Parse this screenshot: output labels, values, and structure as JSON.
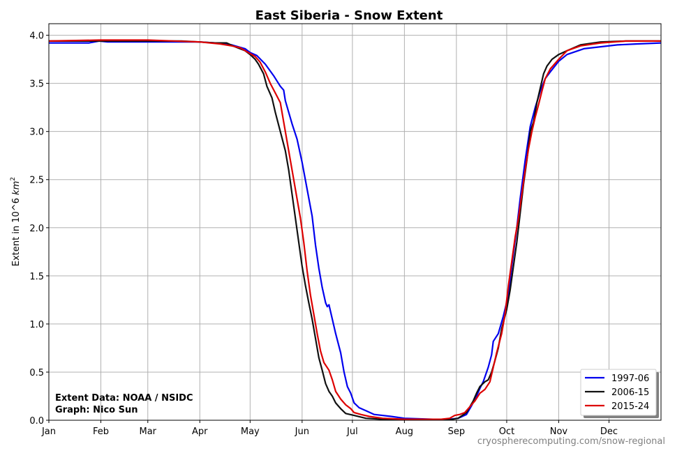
{
  "chart_data": {
    "type": "line",
    "title": "East Siberia - Snow Extent",
    "ylabel_prefix": "Extent in 10^6 ",
    "ylabel_unit": "km",
    "ylabel_exp": "2",
    "xlim": [
      1,
      366
    ],
    "ylim": [
      0,
      4.12
    ],
    "grid": true,
    "legend_position": "lower-right",
    "x_ticks": [
      {
        "label": "Jan",
        "day": 1
      },
      {
        "label": "Feb",
        "day": 32
      },
      {
        "label": "Mar",
        "day": 60
      },
      {
        "label": "Apr",
        "day": 91
      },
      {
        "label": "May",
        "day": 121
      },
      {
        "label": "Jun",
        "day": 152
      },
      {
        "label": "Jul",
        "day": 182
      },
      {
        "label": "Aug",
        "day": 213
      },
      {
        "label": "Sep",
        "day": 244
      },
      {
        "label": "Oct",
        "day": 274
      },
      {
        "label": "Nov",
        "day": 305
      },
      {
        "label": "Dec",
        "day": 335
      }
    ],
    "y_ticks": [
      {
        "label": "0.0",
        "value": 0.0
      },
      {
        "label": "0.5",
        "value": 0.5
      },
      {
        "label": "1.0",
        "value": 1.0
      },
      {
        "label": "1.5",
        "value": 1.5
      },
      {
        "label": "2.0",
        "value": 2.0
      },
      {
        "label": "2.5",
        "value": 2.5
      },
      {
        "label": "3.0",
        "value": 3.0
      },
      {
        "label": "3.5",
        "value": 3.5
      },
      {
        "label": "4.0",
        "value": 4.0
      }
    ],
    "series": [
      {
        "name": "1997-06",
        "color": "#0000ee",
        "points": [
          [
            1,
            3.92
          ],
          [
            25,
            3.92
          ],
          [
            31,
            3.94
          ],
          [
            36,
            3.93
          ],
          [
            60,
            3.93
          ],
          [
            91,
            3.93
          ],
          [
            100,
            3.92
          ],
          [
            110,
            3.9
          ],
          [
            118,
            3.86
          ],
          [
            121,
            3.82
          ],
          [
            125,
            3.79
          ],
          [
            130,
            3.7
          ],
          [
            135,
            3.58
          ],
          [
            139,
            3.47
          ],
          [
            141,
            3.43
          ],
          [
            142,
            3.32
          ],
          [
            144,
            3.2
          ],
          [
            146,
            3.08
          ],
          [
            149,
            2.92
          ],
          [
            152,
            2.68
          ],
          [
            155,
            2.4
          ],
          [
            158,
            2.12
          ],
          [
            160,
            1.82
          ],
          [
            162,
            1.58
          ],
          [
            164,
            1.38
          ],
          [
            166,
            1.22
          ],
          [
            167,
            1.18
          ],
          [
            168,
            1.2
          ],
          [
            170,
            1.05
          ],
          [
            172,
            0.9
          ],
          [
            175,
            0.7
          ],
          [
            177,
            0.5
          ],
          [
            179,
            0.35
          ],
          [
            181,
            0.28
          ],
          [
            183,
            0.18
          ],
          [
            186,
            0.13
          ],
          [
            190,
            0.1
          ],
          [
            195,
            0.06
          ],
          [
            205,
            0.04
          ],
          [
            213,
            0.02
          ],
          [
            230,
            0.01
          ],
          [
            240,
            0.01
          ],
          [
            245,
            0.02
          ],
          [
            250,
            0.06
          ],
          [
            253,
            0.15
          ],
          [
            256,
            0.25
          ],
          [
            258,
            0.33
          ],
          [
            260,
            0.4
          ],
          [
            263,
            0.55
          ],
          [
            265,
            0.68
          ],
          [
            266,
            0.82
          ],
          [
            269,
            0.9
          ],
          [
            272,
            1.08
          ],
          [
            275,
            1.3
          ],
          [
            277,
            1.6
          ],
          [
            280,
            2.0
          ],
          [
            282,
            2.3
          ],
          [
            285,
            2.7
          ],
          [
            288,
            3.05
          ],
          [
            291,
            3.25
          ],
          [
            294,
            3.42
          ],
          [
            297,
            3.55
          ],
          [
            300,
            3.62
          ],
          [
            305,
            3.73
          ],
          [
            310,
            3.8
          ],
          [
            320,
            3.86
          ],
          [
            330,
            3.88
          ],
          [
            340,
            3.9
          ],
          [
            352,
            3.91
          ],
          [
            366,
            3.92
          ]
        ]
      },
      {
        "name": "2006-15",
        "color": "#111111",
        "points": [
          [
            1,
            3.94
          ],
          [
            20,
            3.94
          ],
          [
            31,
            3.94
          ],
          [
            60,
            3.94
          ],
          [
            80,
            3.94
          ],
          [
            91,
            3.93
          ],
          [
            100,
            3.92
          ],
          [
            107,
            3.92
          ],
          [
            112,
            3.88
          ],
          [
            118,
            3.84
          ],
          [
            121,
            3.8
          ],
          [
            124,
            3.75
          ],
          [
            126,
            3.7
          ],
          [
            129,
            3.6
          ],
          [
            131,
            3.47
          ],
          [
            134,
            3.35
          ],
          [
            136,
            3.2
          ],
          [
            139,
            3.0
          ],
          [
            142,
            2.8
          ],
          [
            144,
            2.6
          ],
          [
            146,
            2.35
          ],
          [
            148,
            2.1
          ],
          [
            150,
            1.85
          ],
          [
            152,
            1.6
          ],
          [
            154,
            1.4
          ],
          [
            156,
            1.22
          ],
          [
            158,
            1.05
          ],
          [
            160,
            0.85
          ],
          [
            162,
            0.65
          ],
          [
            164,
            0.52
          ],
          [
            166,
            0.38
          ],
          [
            168,
            0.3
          ],
          [
            170,
            0.25
          ],
          [
            172,
            0.18
          ],
          [
            175,
            0.12
          ],
          [
            178,
            0.07
          ],
          [
            183,
            0.05
          ],
          [
            190,
            0.02
          ],
          [
            200,
            0.01
          ],
          [
            213,
            0.005
          ],
          [
            240,
            0.005
          ],
          [
            245,
            0.02
          ],
          [
            250,
            0.08
          ],
          [
            254,
            0.2
          ],
          [
            256,
            0.28
          ],
          [
            258,
            0.35
          ],
          [
            261,
            0.4
          ],
          [
            263,
            0.42
          ],
          [
            265,
            0.5
          ],
          [
            267,
            0.62
          ],
          [
            269,
            0.75
          ],
          [
            271,
            0.95
          ],
          [
            274,
            1.15
          ],
          [
            276,
            1.35
          ],
          [
            278,
            1.6
          ],
          [
            280,
            1.85
          ],
          [
            282,
            2.15
          ],
          [
            284,
            2.45
          ],
          [
            286,
            2.7
          ],
          [
            288,
            3.0
          ],
          [
            290,
            3.1
          ],
          [
            292,
            3.3
          ],
          [
            294,
            3.45
          ],
          [
            296,
            3.6
          ],
          [
            298,
            3.68
          ],
          [
            301,
            3.75
          ],
          [
            305,
            3.8
          ],
          [
            310,
            3.84
          ],
          [
            318,
            3.9
          ],
          [
            330,
            3.93
          ],
          [
            345,
            3.94
          ],
          [
            366,
            3.94
          ]
        ]
      },
      {
        "name": "2015-24",
        "color": "#dd0000",
        "points": [
          [
            1,
            3.94
          ],
          [
            31,
            3.95
          ],
          [
            60,
            3.95
          ],
          [
            91,
            3.93
          ],
          [
            103,
            3.91
          ],
          [
            110,
            3.89
          ],
          [
            115,
            3.87
          ],
          [
            120,
            3.82
          ],
          [
            124,
            3.78
          ],
          [
            127,
            3.72
          ],
          [
            130,
            3.62
          ],
          [
            133,
            3.5
          ],
          [
            136,
            3.4
          ],
          [
            139,
            3.3
          ],
          [
            141,
            3.1
          ],
          [
            143,
            2.9
          ],
          [
            145,
            2.7
          ],
          [
            147,
            2.5
          ],
          [
            149,
            2.3
          ],
          [
            151,
            2.1
          ],
          [
            153,
            1.85
          ],
          [
            155,
            1.55
          ],
          [
            157,
            1.3
          ],
          [
            159,
            1.1
          ],
          [
            161,
            0.9
          ],
          [
            163,
            0.72
          ],
          [
            165,
            0.6
          ],
          [
            168,
            0.52
          ],
          [
            170,
            0.42
          ],
          [
            172,
            0.3
          ],
          [
            175,
            0.22
          ],
          [
            178,
            0.16
          ],
          [
            181,
            0.12
          ],
          [
            183,
            0.08
          ],
          [
            187,
            0.06
          ],
          [
            192,
            0.04
          ],
          [
            200,
            0.02
          ],
          [
            213,
            0.01
          ],
          [
            235,
            0.01
          ],
          [
            240,
            0.02
          ],
          [
            243,
            0.05
          ],
          [
            246,
            0.06
          ],
          [
            249,
            0.08
          ],
          [
            252,
            0.14
          ],
          [
            255,
            0.2
          ],
          [
            258,
            0.28
          ],
          [
            261,
            0.32
          ],
          [
            264,
            0.4
          ],
          [
            266,
            0.55
          ],
          [
            268,
            0.7
          ],
          [
            271,
            0.9
          ],
          [
            273,
            1.1
          ],
          [
            275,
            1.4
          ],
          [
            277,
            1.65
          ],
          [
            279,
            1.9
          ],
          [
            281,
            2.1
          ],
          [
            283,
            2.35
          ],
          [
            285,
            2.6
          ],
          [
            287,
            2.82
          ],
          [
            289,
            3.0
          ],
          [
            291,
            3.15
          ],
          [
            293,
            3.28
          ],
          [
            295,
            3.42
          ],
          [
            297,
            3.55
          ],
          [
            300,
            3.65
          ],
          [
            305,
            3.75
          ],
          [
            310,
            3.84
          ],
          [
            318,
            3.89
          ],
          [
            330,
            3.92
          ],
          [
            345,
            3.94
          ],
          [
            366,
            3.94
          ]
        ]
      }
    ]
  },
  "annotations": {
    "data_source": "Extent Data: NOAA / NSIDC",
    "graph_credit": "Graph: Nico Sun",
    "website": "cryospherecomputing.com/snow-regional"
  }
}
